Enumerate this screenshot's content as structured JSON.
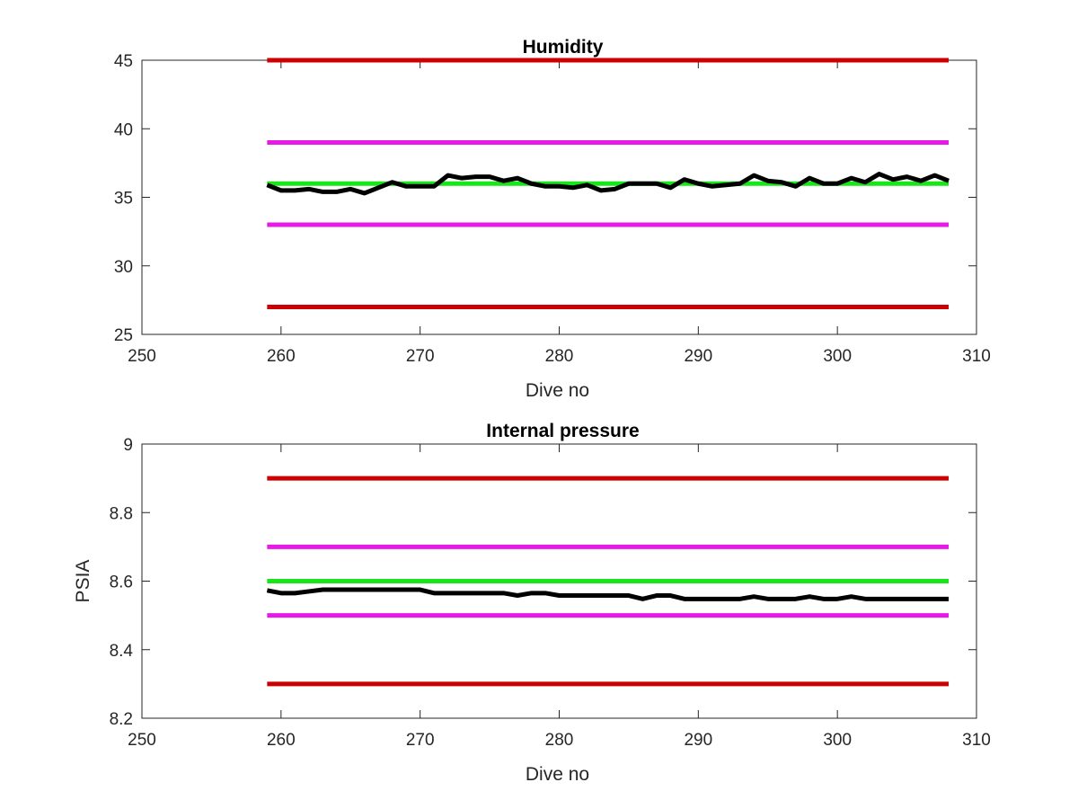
{
  "chart_data": [
    {
      "type": "line",
      "title": "Humidity",
      "xlabel": "Dive no",
      "ylabel": "",
      "xlim": [
        250,
        310
      ],
      "ylim": [
        25,
        45
      ],
      "xticks": [
        "250",
        "260",
        "270",
        "280",
        "290",
        "300",
        "310"
      ],
      "yticks": [
        "25",
        "30",
        "35",
        "40",
        "45"
      ],
      "grid": false,
      "reference_lines": [
        {
          "y": 45,
          "x": [
            259,
            308
          ],
          "color": "#cc0000"
        },
        {
          "y": 39,
          "x": [
            259,
            308
          ],
          "color": "#e619e6"
        },
        {
          "y": 36,
          "x": [
            259,
            308
          ],
          "color": "#19e619"
        },
        {
          "y": 33,
          "x": [
            259,
            308
          ],
          "color": "#e619e6"
        },
        {
          "y": 27,
          "x": [
            259,
            308
          ],
          "color": "#cc0000"
        }
      ],
      "series": [
        {
          "color": "#000000",
          "x": [
            259,
            260,
            261,
            262,
            263,
            264,
            265,
            266,
            267,
            268,
            269,
            270,
            271,
            272,
            273,
            274,
            275,
            276,
            277,
            278,
            279,
            280,
            281,
            282,
            283,
            284,
            285,
            286,
            287,
            288,
            289,
            290,
            291,
            292,
            293,
            294,
            295,
            296,
            297,
            298,
            299,
            300,
            301,
            302,
            303,
            304,
            305,
            306,
            307,
            308
          ],
          "values": [
            35.9,
            35.5,
            35.5,
            35.6,
            35.4,
            35.4,
            35.6,
            35.3,
            35.7,
            36.1,
            35.8,
            35.8,
            35.8,
            36.6,
            36.4,
            36.5,
            36.5,
            36.2,
            36.4,
            36.0,
            35.8,
            35.8,
            35.7,
            35.9,
            35.5,
            35.6,
            36.0,
            36.0,
            36.0,
            35.7,
            36.3,
            36.0,
            35.8,
            35.9,
            36.0,
            36.6,
            36.2,
            36.1,
            35.8,
            36.4,
            36.0,
            36.0,
            36.4,
            36.1,
            36.7,
            36.3,
            36.5,
            36.2,
            36.6,
            36.2
          ]
        }
      ]
    },
    {
      "type": "line",
      "title": "Internal pressure",
      "xlabel": "Dive no",
      "ylabel": "PSIA",
      "xlim": [
        250,
        310
      ],
      "ylim": [
        8.2,
        9
      ],
      "xticks": [
        "250",
        "260",
        "270",
        "280",
        "290",
        "300",
        "310"
      ],
      "yticks": [
        "8.2",
        "8.4",
        "8.6",
        "8.8",
        "9"
      ],
      "grid": false,
      "reference_lines": [
        {
          "y": 8.9,
          "x": [
            259,
            308
          ],
          "color": "#cc0000"
        },
        {
          "y": 8.7,
          "x": [
            259,
            308
          ],
          "color": "#e619e6"
        },
        {
          "y": 8.6,
          "x": [
            259,
            308
          ],
          "color": "#19e619"
        },
        {
          "y": 8.5,
          "x": [
            259,
            308
          ],
          "color": "#e619e6"
        },
        {
          "y": 8.3,
          "x": [
            259,
            308
          ],
          "color": "#cc0000"
        }
      ],
      "series": [
        {
          "color": "#000000",
          "x": [
            259,
            260,
            261,
            262,
            263,
            264,
            265,
            266,
            267,
            268,
            269,
            270,
            271,
            272,
            273,
            274,
            275,
            276,
            277,
            278,
            279,
            280,
            281,
            282,
            283,
            284,
            285,
            286,
            287,
            288,
            289,
            290,
            291,
            292,
            293,
            294,
            295,
            296,
            297,
            298,
            299,
            300,
            301,
            302,
            303,
            304,
            305,
            306,
            307,
            308
          ],
          "values": [
            8.573,
            8.565,
            8.565,
            8.57,
            8.575,
            8.575,
            8.575,
            8.575,
            8.575,
            8.575,
            8.575,
            8.575,
            8.565,
            8.565,
            8.565,
            8.565,
            8.565,
            8.565,
            8.558,
            8.565,
            8.565,
            8.558,
            8.558,
            8.558,
            8.558,
            8.558,
            8.558,
            8.548,
            8.558,
            8.558,
            8.548,
            8.548,
            8.548,
            8.548,
            8.548,
            8.555,
            8.548,
            8.548,
            8.548,
            8.555,
            8.548,
            8.548,
            8.555,
            8.548,
            8.548,
            8.548,
            8.548,
            8.548,
            8.548,
            8.548
          ]
        }
      ]
    }
  ]
}
